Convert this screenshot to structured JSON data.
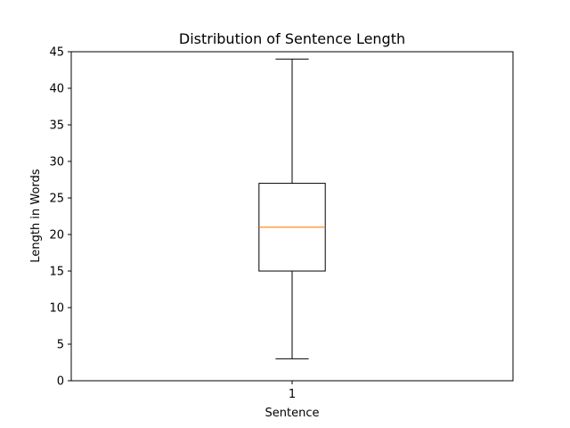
{
  "chart_data": {
    "type": "box",
    "title": "Distribution of Sentence Length",
    "xlabel": "Sentence",
    "ylabel": "Length in Words",
    "categories": [
      "1"
    ],
    "boxes": [
      {
        "name": "1",
        "min": 3,
        "q1": 15,
        "median": 21,
        "q3": 27,
        "max": 44
      }
    ],
    "ylim": [
      0,
      45
    ],
    "yticks": [
      0,
      5,
      10,
      15,
      20,
      25,
      30,
      35,
      40,
      45
    ],
    "xlim": [
      0.5,
      1.5
    ],
    "grid": false,
    "legend": "none",
    "colors": {
      "box": "#000000",
      "median": "#ff7f0e",
      "axes": "#000000",
      "background": "#ffffff"
    }
  }
}
